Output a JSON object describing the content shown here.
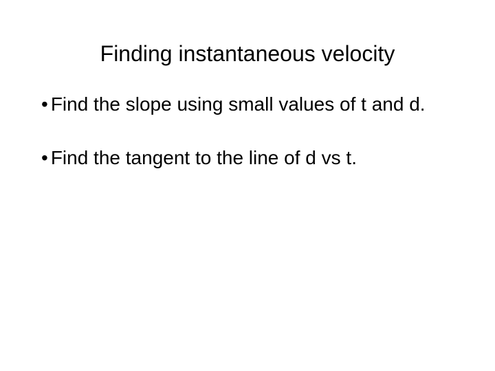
{
  "slide": {
    "title": "Finding instantaneous velocity",
    "bullets": [
      {
        "marker": "•",
        "text": "Find the slope using small values of t and d."
      },
      {
        "marker": "•",
        "text": "Find the tangent to the line of d vs t."
      }
    ]
  },
  "style": {
    "background_color": "#ffffff",
    "text_color": "#000000",
    "title_fontsize": 32,
    "body_fontsize": 28,
    "font_family": "Verdana"
  }
}
